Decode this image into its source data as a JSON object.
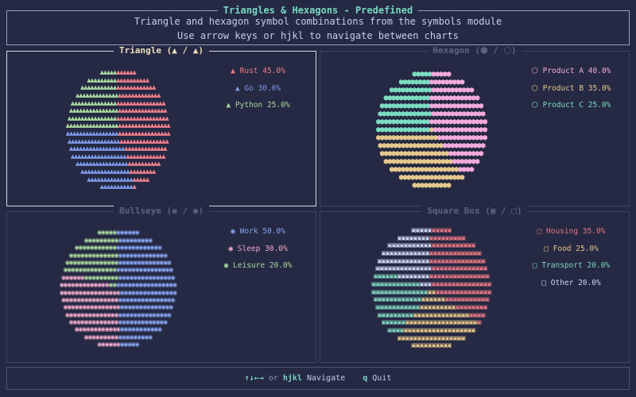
{
  "colors": {
    "background": "#262943",
    "accent_teal": "#76d7c2",
    "text_light": "#c8cde8",
    "panel_border": "#3c4361",
    "panel_border_selected": "#d4d7e3",
    "panel_title_dim": "#5b6284",
    "panel_title_selected": "#ecdfbf",
    "header_border": "#959dbb"
  },
  "header": {
    "title": "Triangles & Hexagons - Predefined",
    "subtitle": "Triangle and hexagon symbol combinations from the symbols module",
    "hint": "Use arrow keys or hjkl to navigate between charts"
  },
  "footer": {
    "arrows": "↑↓←→",
    "or": "or",
    "hjkl": "hjkl",
    "navigate": "Navigate",
    "quit_key": "q",
    "quit_label": "Quit"
  },
  "chart_data": [
    {
      "type": "pie",
      "title": "Triangle (▲ / ▲)",
      "selected": true,
      "symbol": "▲",
      "legend_marker": "▲",
      "grid": {
        "rows": 16,
        "cols": 32
      },
      "segments": [
        {
          "label": "Rust",
          "value": 45.0,
          "display": "Rust 45.0%",
          "color": "#ef7f8a"
        },
        {
          "label": "Go",
          "value": 30.0,
          "display": "Go 30.0%",
          "color": "#7d99e8"
        },
        {
          "label": "Python",
          "value": 25.0,
          "display": "Python 25.0%",
          "color": "#a8d89e"
        }
      ]
    },
    {
      "type": "pie",
      "title": "Hexagon (⬢ / ⬡)",
      "selected": false,
      "symbol": "⬢",
      "legend_marker": "⬡",
      "grid": {
        "rows": 15,
        "cols": 29
      },
      "segments": [
        {
          "label": "Product A",
          "value": 40.0,
          "display": "Product A 40.0%",
          "color": "#f3abdc"
        },
        {
          "label": "Product B",
          "value": 35.0,
          "display": "Product B 35.0%",
          "color": "#e5c88e"
        },
        {
          "label": "Product C",
          "value": 25.0,
          "display": "Product C 25.0%",
          "color": "#7cdcc2"
        }
      ]
    },
    {
      "type": "pie",
      "title": "Bullseye (◉ / ◉)",
      "selected": false,
      "symbol": "◉",
      "legend_marker": "◉",
      "grid": {
        "rows": 16,
        "cols": 31
      },
      "segments": [
        {
          "label": "Work",
          "value": 50.0,
          "display": "Work 50.0%",
          "color": "#87a5f0"
        },
        {
          "label": "Sleep",
          "value": 30.0,
          "display": "Sleep 30.0%",
          "color": "#efaacb"
        },
        {
          "label": "Leisure",
          "value": 20.0,
          "display": "Leisure 20.0%",
          "color": "#a8d89e"
        }
      ]
    },
    {
      "type": "pie",
      "title": "Square Box (▣ / □)",
      "selected": false,
      "symbol": "▣",
      "legend_marker": "□",
      "grid": {
        "rows": 16,
        "cols": 30
      },
      "segments": [
        {
          "label": "Housing",
          "value": 35.0,
          "display": "Housing 35.0%",
          "color": "#e57581"
        },
        {
          "label": "Food",
          "value": 25.0,
          "display": "Food 25.0%",
          "color": "#e3c387"
        },
        {
          "label": "Transport",
          "value": 20.0,
          "display": "Transport 20.0%",
          "color": "#7cd6bd"
        },
        {
          "label": "Other",
          "value": 20.0,
          "display": "Other 20.0%",
          "color": "#cbd4f2"
        }
      ]
    }
  ]
}
